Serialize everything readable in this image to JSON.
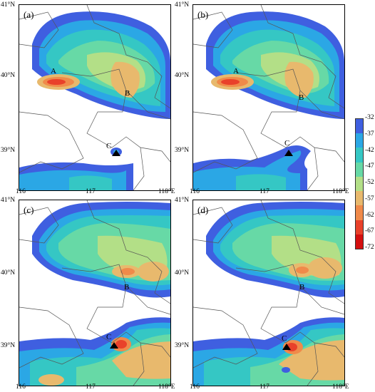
{
  "panels": [
    {
      "label": "(a)",
      "marks": {
        "a": "A",
        "b": "B",
        "c": "C"
      }
    },
    {
      "label": "(b)",
      "marks": {
        "a": "A",
        "b": "B",
        "c": "C"
      }
    },
    {
      "label": "(c)",
      "marks": {
        "b": "B",
        "c": "C"
      }
    },
    {
      "label": "(d)",
      "marks": {
        "b": "B",
        "c": "C"
      }
    }
  ],
  "lat_labels": [
    "41°N",
    "40°N",
    "39°N"
  ],
  "lon_labels": [
    "116",
    "117",
    "118°E"
  ],
  "colorbar": {
    "labels": [
      "-32",
      "-37",
      "-42",
      "-47",
      "-52",
      "-57",
      "-62",
      "-67",
      "-72"
    ],
    "colors": [
      "#3f5fe0",
      "#2ba7e5",
      "#35c7c4",
      "#67d9a6",
      "#b3df87",
      "#e8b96d",
      "#f08a4a",
      "#e9412a",
      "#d40f0f"
    ]
  }
}
